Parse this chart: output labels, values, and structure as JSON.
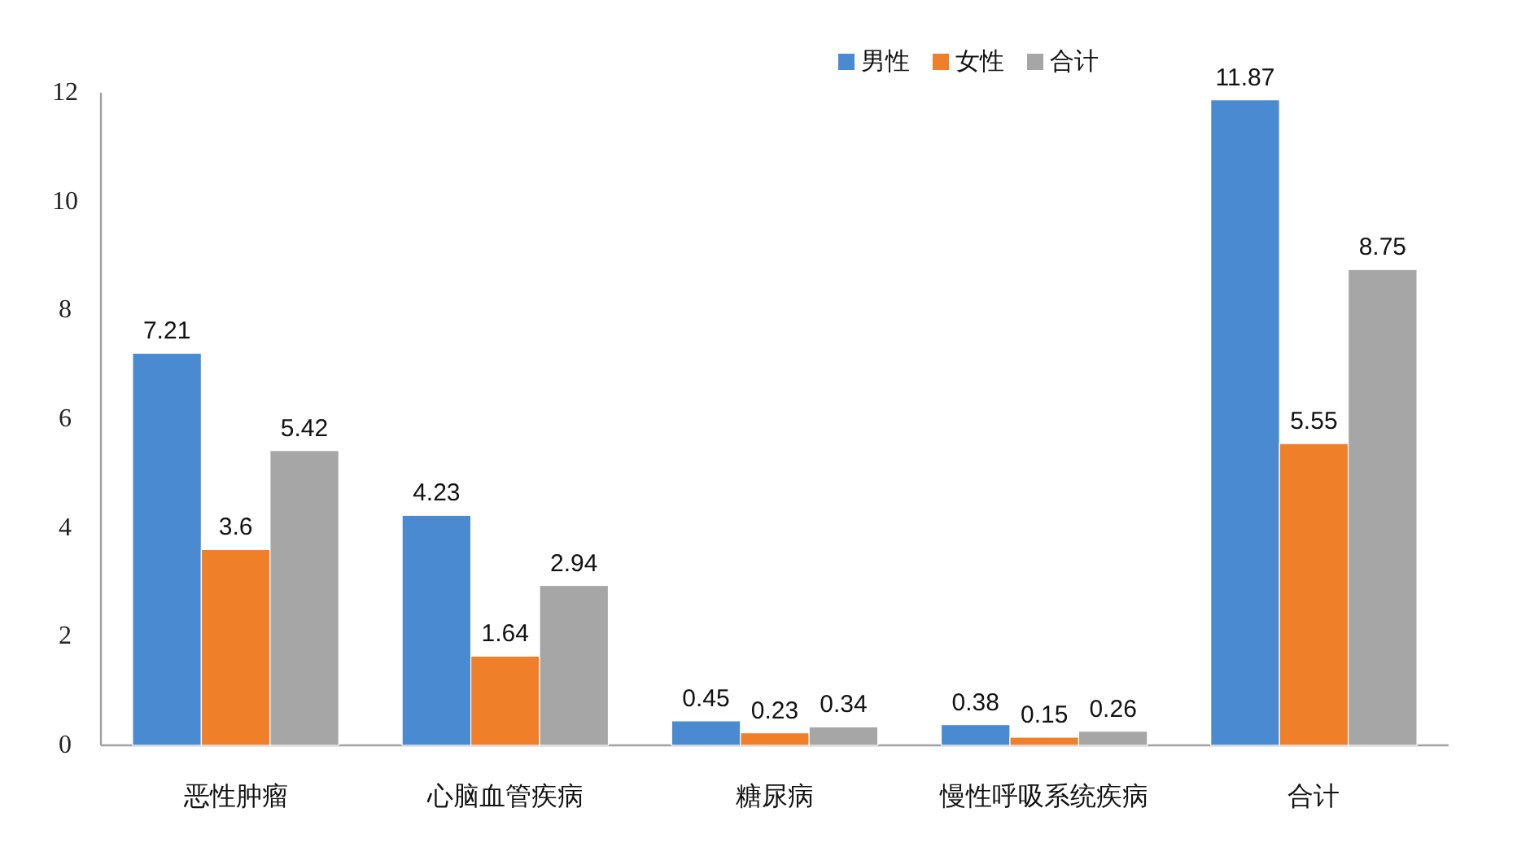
{
  "chart_data": {
    "type": "bar",
    "categories": [
      "恶性肿瘤",
      "心脑血管疾病",
      "糖尿病",
      "慢性呼吸系统疾病",
      "合计"
    ],
    "series": [
      {
        "name": "男性",
        "color": "#4a8ad0",
        "values": [
          7.21,
          4.23,
          0.45,
          0.38,
          11.87
        ]
      },
      {
        "name": "女性",
        "color": "#f07f2a",
        "values": [
          3.6,
          1.64,
          0.23,
          0.15,
          5.55
        ]
      },
      {
        "name": "合计",
        "color": "#a6a6a6",
        "values": [
          5.42,
          2.94,
          0.34,
          0.26,
          8.75
        ]
      }
    ],
    "ylim": [
      0,
      12
    ],
    "yticks": [
      0,
      2,
      4,
      6,
      8,
      10,
      12
    ],
    "data_labels": true,
    "legend": "top right",
    "grid": false
  }
}
